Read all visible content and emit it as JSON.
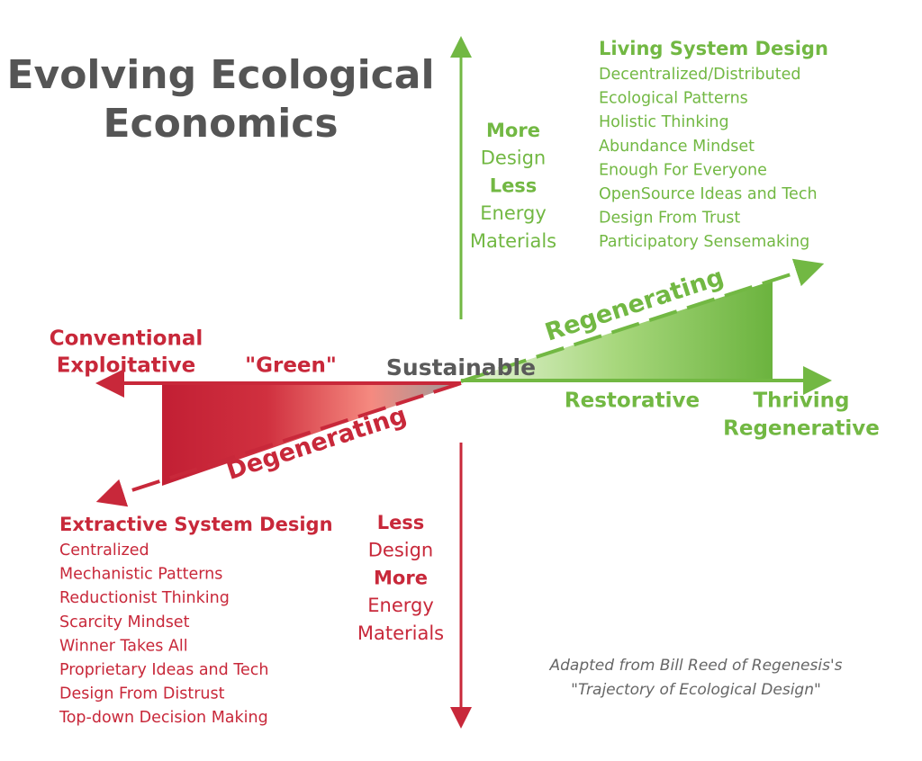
{
  "title": [
    "Evolving Ecological",
    "Economics"
  ],
  "upper_axis": [
    "More",
    "Design",
    "Less",
    "Energy",
    "Materials"
  ],
  "living_system": {
    "heading": "Living System Design",
    "items": [
      "Decentralized/Distributed",
      "Ecological Patterns",
      "Holistic Thinking",
      "Abundance Mindset",
      "Enough For Everyone",
      "OpenSource Ideas and Tech",
      "Design From Trust",
      "Participatory Sensemaking"
    ]
  },
  "conventional": [
    "Conventional",
    "Exploitative"
  ],
  "green": "\"Green\"",
  "sustainable": "Sustainable",
  "regenerating": "Regenerating",
  "degenerating": "Degenerating",
  "restorative": "Restorative",
  "thriving": [
    "Thriving",
    "Regenerative"
  ],
  "lower_axis": [
    "Less",
    "Design",
    "More",
    "Energy",
    "Materials"
  ],
  "extractive_system": {
    "heading": "Extractive System Design",
    "items": [
      "Centralized",
      "Mechanistic Patterns",
      "Reductionist Thinking",
      "Scarcity Mindset",
      "Winner Takes All",
      "Proprietary Ideas and Tech",
      "Design From Distrust",
      "Top-down Decision Making"
    ]
  },
  "credit": [
    "Adapted from Bill Reed of Regenesis's",
    "\"Trajectory of Ecological Design\""
  ]
}
